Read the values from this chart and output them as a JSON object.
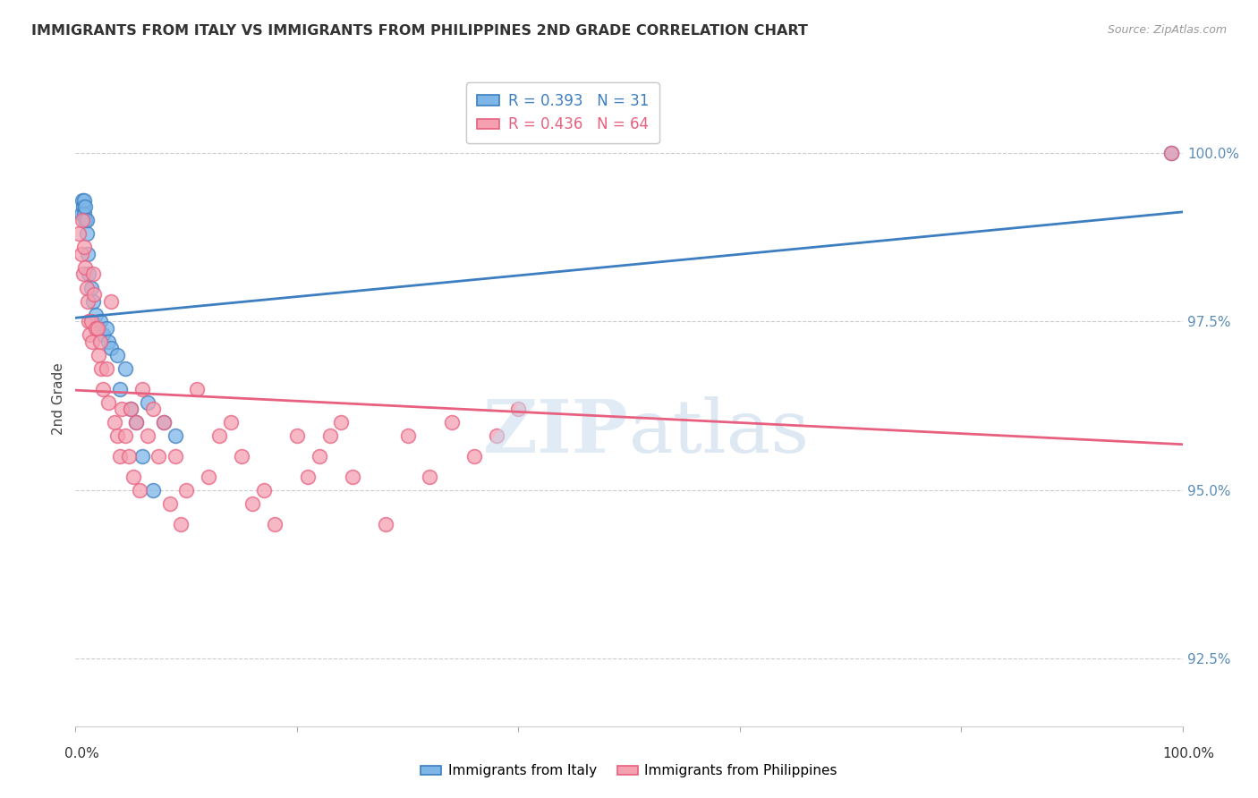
{
  "title": "IMMIGRANTS FROM ITALY VS IMMIGRANTS FROM PHILIPPINES 2ND GRADE CORRELATION CHART",
  "source": "Source: ZipAtlas.com",
  "ylabel": "2nd Grade",
  "y_ticks": [
    92.5,
    95.0,
    97.5,
    100.0
  ],
  "y_tick_labels": [
    "92.5%",
    "95.0%",
    "97.5%",
    "100.0%"
  ],
  "x_range": [
    0.0,
    1.0
  ],
  "y_range": [
    91.5,
    101.2
  ],
  "italy_color": "#7EB6E8",
  "philippines_color": "#F4A0B0",
  "italy_line_color": "#3C7EC0",
  "philippines_line_color": "#E86080",
  "italy_x": [
    0.005,
    0.006,
    0.007,
    0.008,
    0.008,
    0.009,
    0.009,
    0.01,
    0.01,
    0.011,
    0.012,
    0.014,
    0.016,
    0.018,
    0.02,
    0.022,
    0.025,
    0.028,
    0.03,
    0.032,
    0.038,
    0.04,
    0.045,
    0.05,
    0.055,
    0.06,
    0.065,
    0.07,
    0.08,
    0.09,
    0.99
  ],
  "italy_y": [
    99.1,
    99.3,
    99.2,
    99.1,
    99.3,
    99.0,
    99.2,
    98.8,
    99.0,
    98.5,
    98.2,
    98.0,
    97.8,
    97.6,
    97.4,
    97.5,
    97.3,
    97.4,
    97.2,
    97.1,
    97.0,
    96.5,
    96.8,
    96.2,
    96.0,
    95.5,
    96.3,
    95.0,
    96.0,
    95.8,
    100.0
  ],
  "philippines_x": [
    0.003,
    0.005,
    0.006,
    0.007,
    0.008,
    0.009,
    0.01,
    0.011,
    0.012,
    0.013,
    0.014,
    0.015,
    0.016,
    0.017,
    0.018,
    0.02,
    0.021,
    0.022,
    0.023,
    0.025,
    0.028,
    0.03,
    0.032,
    0.035,
    0.038,
    0.04,
    0.042,
    0.045,
    0.048,
    0.05,
    0.052,
    0.055,
    0.058,
    0.06,
    0.065,
    0.07,
    0.075,
    0.08,
    0.085,
    0.09,
    0.095,
    0.1,
    0.11,
    0.12,
    0.13,
    0.14,
    0.15,
    0.16,
    0.17,
    0.18,
    0.2,
    0.21,
    0.22,
    0.23,
    0.24,
    0.25,
    0.28,
    0.3,
    0.32,
    0.34,
    0.36,
    0.38,
    0.4,
    0.99
  ],
  "philippines_y": [
    98.8,
    98.5,
    99.0,
    98.2,
    98.6,
    98.3,
    98.0,
    97.8,
    97.5,
    97.3,
    97.5,
    97.2,
    98.2,
    97.9,
    97.4,
    97.4,
    97.0,
    97.2,
    96.8,
    96.5,
    96.8,
    96.3,
    97.8,
    96.0,
    95.8,
    95.5,
    96.2,
    95.8,
    95.5,
    96.2,
    95.2,
    96.0,
    95.0,
    96.5,
    95.8,
    96.2,
    95.5,
    96.0,
    94.8,
    95.5,
    94.5,
    95.0,
    96.5,
    95.2,
    95.8,
    96.0,
    95.5,
    94.8,
    95.0,
    94.5,
    95.8,
    95.2,
    95.5,
    95.8,
    96.0,
    95.2,
    94.5,
    95.8,
    95.2,
    96.0,
    95.5,
    95.8,
    96.2,
    100.0
  ],
  "grid_color": "#CCCCCC",
  "background_color": "#FFFFFF"
}
